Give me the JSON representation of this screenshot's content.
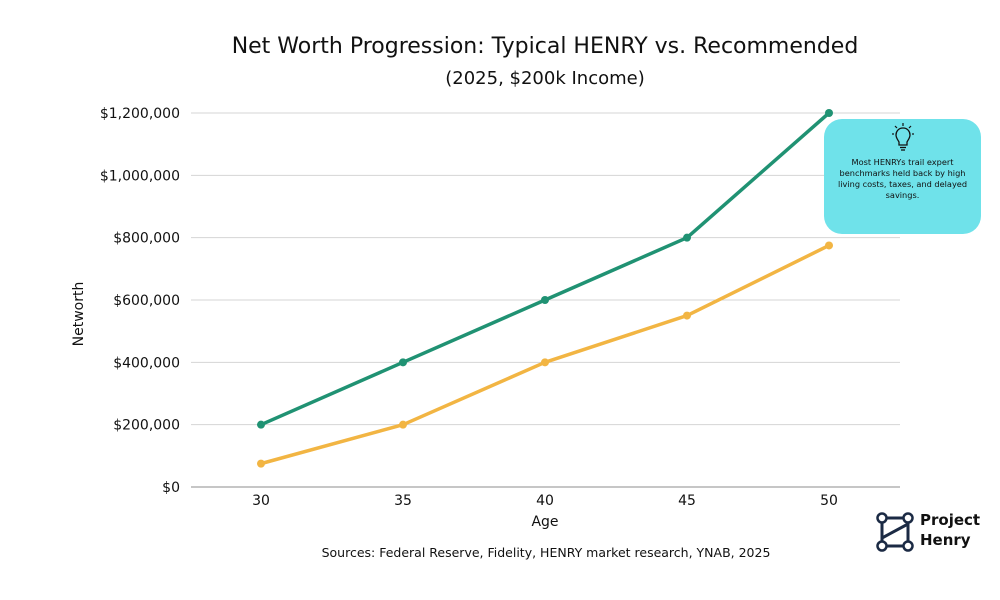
{
  "chart_data": {
    "type": "line",
    "title": "Net Worth Progression: Typical HENRY vs. Recommended",
    "subtitle": "(2025, $200k Income)",
    "xlabel": "Age",
    "ylabel": "Networth",
    "x": [
      30,
      35,
      40,
      45,
      50
    ],
    "x_tick_labels": [
      "30",
      "35",
      "40",
      "45",
      "50"
    ],
    "ylim": [
      0,
      1200000
    ],
    "y_ticks": [
      0,
      200000,
      400000,
      600000,
      800000,
      1000000,
      1200000
    ],
    "y_tick_labels": [
      "$0",
      "$200,000",
      "$400,000",
      "$600,000",
      "$800,000",
      "$1,000,000",
      "$1,200,000"
    ],
    "grid": true,
    "legend": "none",
    "series": [
      {
        "values": [
          200000,
          400000,
          600000,
          800000,
          1200000
        ],
        "color": "#209273"
      },
      {
        "values": [
          75000,
          200000,
          400000,
          550000,
          775000
        ],
        "color": "#f2b543"
      }
    ],
    "annotation": {
      "text": "Most HENRYs trail expert benchmarks held back by high living costs, taxes, and delayed savings.",
      "icon": "lightbulb-icon",
      "color": "#6fe2ea"
    },
    "source": "Sources: Federal Reserve, Fidelity, HENRY market research, YNAB, 2025"
  },
  "logo": {
    "line1": "Project",
    "line2": "Henry",
    "icon": "project-henry-logo-icon"
  }
}
